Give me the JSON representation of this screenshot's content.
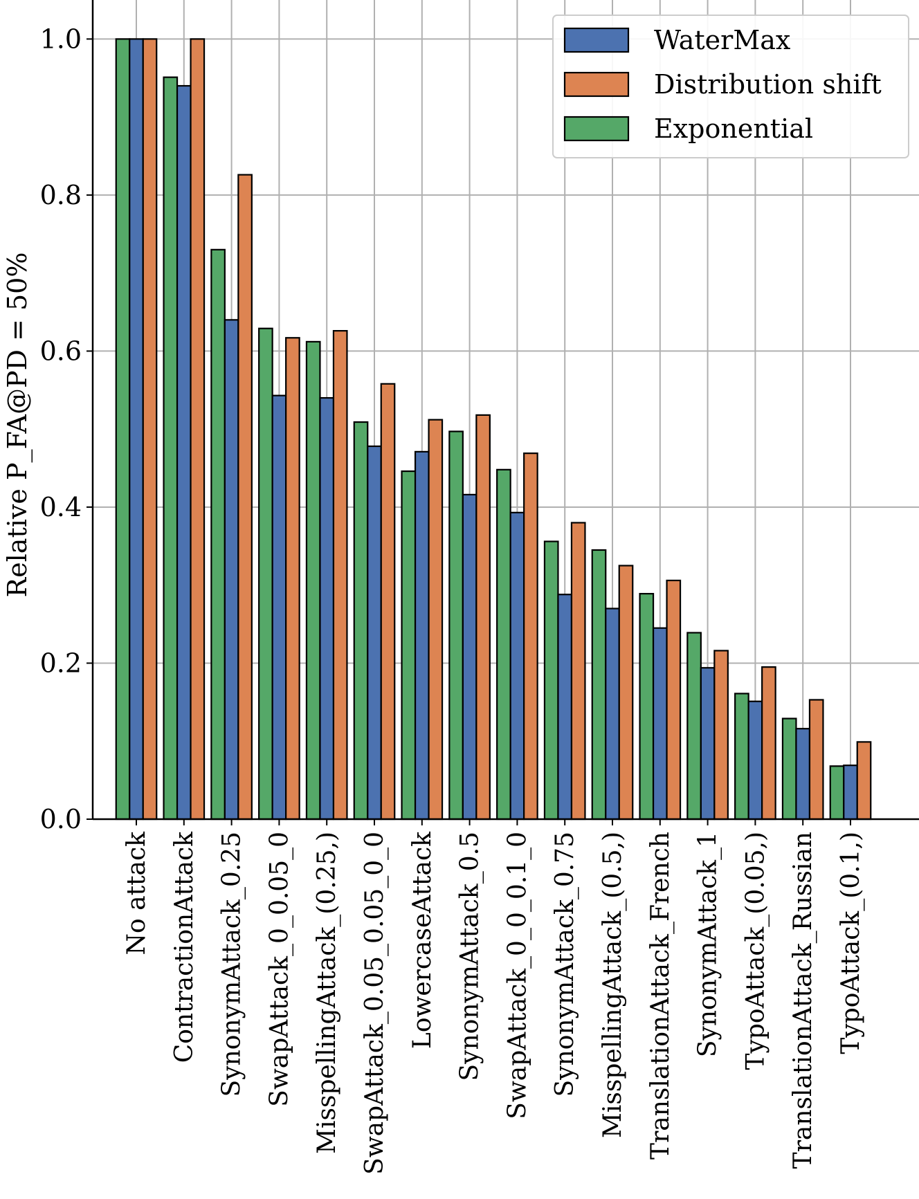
{
  "chart_data": {
    "type": "bar",
    "ylabel": "Relative P_FA@PD = 50%",
    "ylim": [
      0,
      1.05
    ],
    "yticks": [
      0.0,
      0.2,
      0.4,
      0.6,
      0.8,
      1.0
    ],
    "ytick_labels": [
      "0.0",
      "0.2",
      "0.4",
      "0.6",
      "0.8",
      "1.0"
    ],
    "grid": true,
    "legend_position": "top-right",
    "categories": [
      "No attack",
      "ContractionAttack",
      "SynonymAttack_0.25",
      "SwapAttack_0_0.05_0",
      "MisspellingAttack_(0.25,)",
      "SwapAttack_0.05_0.05_0_0",
      "LowercaseAttack",
      "SynonymAttack_0.5",
      "SwapAttack_0_0_0.1_0",
      "SynonymAttack_0.75",
      "MisspellingAttack_(0.5,)",
      "TranslationAttack_French",
      "SynonymAttack_1",
      "TypoAttack_(0.05,)",
      "TranslationAttack_Russian",
      "TypoAttack_(0.1,)"
    ],
    "series": [
      {
        "name": "WaterMax",
        "color": "#4c72b0",
        "values": [
          1.0,
          0.94,
          0.64,
          0.543,
          0.54,
          0.478,
          0.471,
          0.416,
          0.393,
          0.288,
          0.27,
          0.245,
          0.194,
          0.151,
          0.116,
          0.069
        ]
      },
      {
        "name": "Distribution shift",
        "color": "#dd8452",
        "values": [
          1.0,
          1.0,
          0.826,
          0.617,
          0.626,
          0.558,
          0.512,
          0.518,
          0.469,
          0.38,
          0.325,
          0.306,
          0.216,
          0.195,
          0.153,
          0.099
        ]
      },
      {
        "name": "Exponential",
        "color": "#55a868",
        "values": [
          1.0,
          0.951,
          0.73,
          0.629,
          0.612,
          0.509,
          0.446,
          0.497,
          0.448,
          0.356,
          0.345,
          0.289,
          0.239,
          0.161,
          0.129,
          0.068
        ]
      }
    ],
    "draw_order": [
      "Exponential",
      "WaterMax",
      "Distribution shift"
    ]
  }
}
